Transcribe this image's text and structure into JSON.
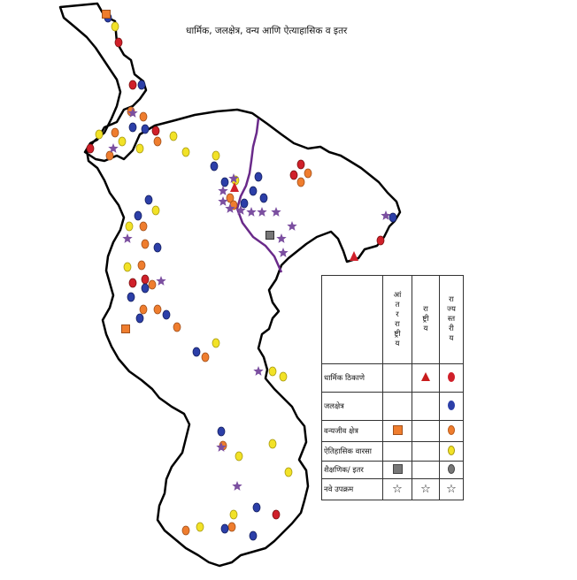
{
  "title": "धार्मिक, जलक्षेत्र, वन्य आणि ऐत्याहासिक व इतर",
  "legend": {
    "headers": {
      "international": [
        "आं",
        "त",
        "र",
        "रा",
        "ष्ट्री",
        "य"
      ],
      "national": [
        "रा",
        "ष्ट्री",
        "य"
      ],
      "state": [
        "रा",
        "ज्य",
        "स्त",
        "री",
        "य"
      ]
    },
    "rows": [
      {
        "label": "धार्मिक ठिकाणे",
        "international": "",
        "national": "triangle",
        "state": "red-oval"
      },
      {
        "label": "जलक्षेत्र",
        "international": "",
        "national": "",
        "state": "blue-oval"
      },
      {
        "label": "वन्यजीव क्षेत्र",
        "international": "orange-square",
        "national": "",
        "state": "orange-oval"
      },
      {
        "label": "ऐतिहासिक वारसा",
        "international": "",
        "national": "",
        "state": "yellow-oval"
      },
      {
        "label": "शैक्षणिक/ इतर",
        "international": "gray-square",
        "national": "",
        "state": "gray-oval"
      },
      {
        "label": "नवे उपक्रम",
        "international": "☆",
        "national": "☆",
        "state": "☆"
      }
    ]
  },
  "colors": {
    "religious": "#d0202a",
    "water": "#2c3fa8",
    "wildlife": "#ef7d2e",
    "heritage": "#f2e227",
    "education": "#777777",
    "new_initiative": "#7b4fa0",
    "river": "#6a2a8a",
    "boundary": "#000000"
  }
}
